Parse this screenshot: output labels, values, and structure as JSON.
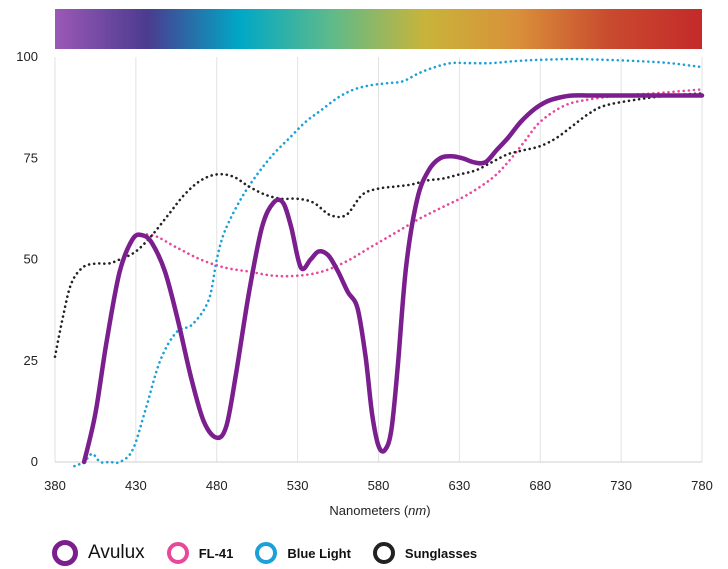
{
  "chart_data": {
    "type": "line",
    "xlabel_prefix": "Nanometers (",
    "xlabel_unit": "nm",
    "xlabel_suffix": ")",
    "ylabel": "",
    "xlim": [
      380,
      780
    ],
    "ylim": [
      0,
      100
    ],
    "x_ticks": [
      380,
      430,
      480,
      530,
      580,
      630,
      680,
      730,
      780
    ],
    "y_ticks": [
      0,
      25,
      50,
      75,
      100
    ],
    "grid": "vertical",
    "legend_position": "bottom",
    "spectrum_bar": [
      "#9b59b6",
      "#4b3b8f",
      "#00a8c6",
      "#5fba8a",
      "#c8b43a",
      "#d9903a",
      "#c94a2e",
      "#c42a2a"
    ],
    "series": [
      {
        "name": "Avulux",
        "color": "#7b1f8f",
        "style": "solid",
        "x": [
          398,
          405,
          412,
          420,
          428,
          434,
          440,
          448,
          456,
          464,
          472,
          480,
          486,
          492,
          500,
          508,
          515,
          521,
          526,
          532,
          538,
          543,
          549,
          555,
          561,
          567,
          572,
          576,
          580,
          584,
          588,
          592,
          597,
          604,
          611,
          618,
          625,
          632,
          639,
          646,
          653,
          660,
          668,
          676,
          684,
          692,
          700,
          710,
          720,
          735,
          750,
          765,
          780
        ],
        "y": [
          0,
          12,
          30,
          47,
          55,
          56,
          54,
          47,
          35,
          21,
          10,
          6,
          9,
          22,
          42,
          58,
          64,
          64,
          58,
          48,
          50,
          52,
          51,
          47,
          42,
          38,
          26,
          12,
          4,
          3,
          8,
          24,
          48,
          65,
          72,
          75,
          75.5,
          75,
          74,
          74,
          77,
          80,
          84,
          87,
          89,
          90,
          90.5,
          90.5,
          90.5,
          90.5,
          90.5,
          90.5,
          90.5
        ]
      },
      {
        "name": "FL-41",
        "color": "#e8489a",
        "style": "dotted",
        "x": [
          398,
          405,
          412,
          420,
          428,
          440,
          455,
          470,
          485,
          500,
          515,
          530,
          545,
          560,
          575,
          590,
          605,
          620,
          635,
          650,
          660,
          670,
          680,
          695,
          710,
          730,
          750,
          765,
          780
        ],
        "y": [
          0,
          12,
          30,
          47,
          55,
          56,
          53,
          50,
          48,
          47,
          46,
          46,
          47,
          49.5,
          53,
          56.5,
          60,
          63,
          66,
          70,
          74,
          79,
          84,
          88,
          89.5,
          90.5,
          91,
          91.5,
          92
        ]
      },
      {
        "name": "Blue Light",
        "color": "#1ca0d8",
        "style": "dotted",
        "x": [
          392,
          398,
          403,
          408,
          414,
          420,
          428,
          436,
          445,
          455,
          465,
          475,
          480,
          485,
          495,
          505,
          515,
          525,
          535,
          545,
          555,
          565,
          575,
          585,
          595,
          605,
          615,
          625,
          635,
          650,
          665,
          680,
          700,
          720,
          740,
          760,
          780
        ],
        "y": [
          -1,
          0,
          2,
          0,
          0,
          0,
          3,
          13,
          25,
          32,
          34,
          40,
          50,
          57,
          65,
          71,
          76,
          80,
          84,
          87,
          90,
          92,
          93,
          93.5,
          94,
          96,
          97.5,
          98.5,
          98.5,
          98.5,
          99,
          99.3,
          99.5,
          99.3,
          99,
          98.5,
          97.5
        ]
      },
      {
        "name": "Sunglasses",
        "color": "#222222",
        "style": "dotted",
        "x": [
          380,
          385,
          390,
          397,
          405,
          413,
          420,
          430,
          440,
          450,
          460,
          470,
          480,
          490,
          500,
          510,
          520,
          530,
          540,
          550,
          560,
          570,
          580,
          590,
          600,
          610,
          620,
          630,
          640,
          650,
          660,
          670,
          680,
          690,
          700,
          710,
          720,
          740,
          760,
          780
        ],
        "y": [
          26,
          36,
          44,
          48,
          49,
          49,
          50,
          52,
          56,
          61,
          66,
          69.5,
          71,
          70.5,
          68,
          66,
          65,
          65,
          64,
          61,
          61,
          66,
          67.5,
          68,
          68.5,
          69.5,
          70,
          71,
          72,
          74,
          76,
          77,
          78,
          80,
          83,
          86,
          88,
          89.5,
          90.5,
          91
        ]
      }
    ]
  }
}
